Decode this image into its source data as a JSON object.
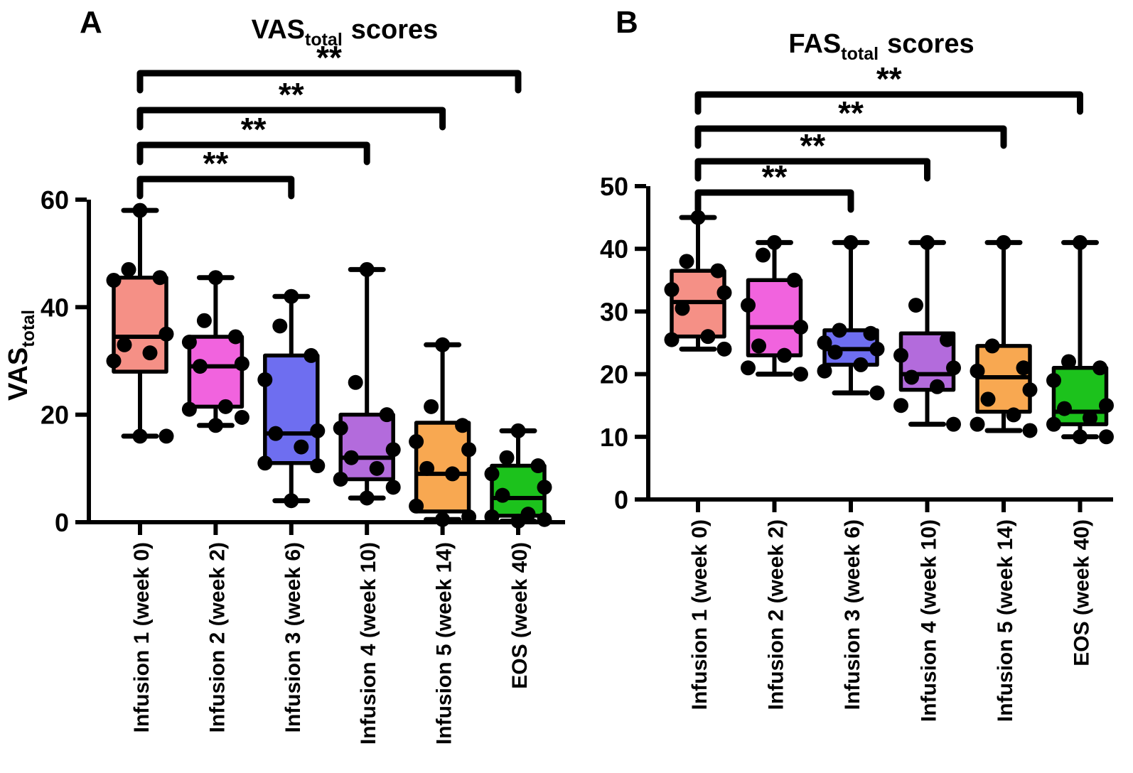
{
  "chart_data": [
    {
      "type": "boxplot",
      "panel_letter": "A",
      "title_main": "VAS",
      "title_sub": "total",
      "title_rest": "scores",
      "ylabel_main": "VAS",
      "ylabel_sub": "total",
      "ylim": [
        0,
        60
      ],
      "yticks": [
        0,
        20,
        40,
        60
      ],
      "categories": [
        "Infusion 1 (week 0)",
        "Infusion 2 (week 2)",
        "Infusion 3 (week 6)",
        "Infusion 4 (week 10)",
        "Infusion 5 (week 14)",
        "EOS (week 40)"
      ],
      "boxes": [
        {
          "category": "Infusion 1 (week 0)",
          "color": "#F59086",
          "whisker_low": 16,
          "q1": 28,
          "median": 34.5,
          "q3": 45.5,
          "whisker_high": 58,
          "points": [
            58,
            47,
            45.5,
            45,
            35,
            33,
            31.5,
            30,
            16,
            16
          ]
        },
        {
          "category": "Infusion 2 (week 2)",
          "color": "#F163DE",
          "whisker_low": 18,
          "q1": 21.5,
          "median": 29,
          "q3": 34.5,
          "whisker_high": 45.5,
          "points": [
            45.5,
            37.5,
            34.5,
            33.5,
            29.5,
            29,
            21.5,
            21,
            19.5,
            18
          ]
        },
        {
          "category": "Infusion 3 (week 6)",
          "color": "#6E6EF0",
          "whisker_low": 4,
          "q1": 11,
          "median": 16.5,
          "q3": 31,
          "whisker_high": 42,
          "points": [
            42,
            36.5,
            31,
            26.5,
            17,
            16.5,
            14,
            11,
            10.5,
            4
          ]
        },
        {
          "category": "Infusion 4 (week 10)",
          "color": "#B36BDC",
          "whisker_low": 4.5,
          "q1": 8,
          "median": 12,
          "q3": 20,
          "whisker_high": 47,
          "points": [
            47,
            26,
            20,
            17.5,
            13.5,
            12,
            10,
            8,
            6.5,
            4.5
          ]
        },
        {
          "category": "Infusion 5 (week 14)",
          "color": "#F8A851",
          "whisker_low": 0.5,
          "q1": 2,
          "median": 9,
          "q3": 18.5,
          "whisker_high": 33,
          "points": [
            33,
            21.5,
            18,
            15,
            13.5,
            10,
            9,
            3,
            1,
            0.5
          ]
        },
        {
          "category": "EOS (week 40)",
          "color": "#1CC21C",
          "whisker_low": 0.2,
          "q1": 1.2,
          "median": 4.5,
          "q3": 10.5,
          "whisker_high": 17,
          "points": [
            17,
            12,
            10.5,
            9,
            6.5,
            5,
            1.5,
            1,
            0.5,
            0.2
          ]
        }
      ],
      "significance": [
        {
          "from": 0,
          "to": 5,
          "label": "**"
        },
        {
          "from": 0,
          "to": 4,
          "label": "**"
        },
        {
          "from": 0,
          "to": 3,
          "label": "**"
        },
        {
          "from": 0,
          "to": 2,
          "label": "**"
        }
      ]
    },
    {
      "type": "boxplot",
      "panel_letter": "B",
      "title_main": "FAS",
      "title_sub": "total",
      "title_rest": "scores",
      "ylim": [
        0,
        50
      ],
      "yticks": [
        0,
        10,
        20,
        30,
        40,
        50
      ],
      "categories": [
        "Infusion 1 (week 0)",
        "Infusion 2 (week 2)",
        "Infusion 3 (week 6)",
        "Infusion 4 (week 10)",
        "Infusion 5 (week 14)",
        "EOS (week 40)"
      ],
      "boxes": [
        {
          "category": "Infusion 1 (week 0)",
          "color": "#F59086",
          "whisker_low": 24,
          "q1": 26,
          "median": 31.5,
          "q3": 36.5,
          "whisker_high": 45,
          "points": [
            45,
            38,
            36.5,
            33.5,
            33,
            30.5,
            26,
            25.5,
            24
          ]
        },
        {
          "category": "Infusion 2 (week 2)",
          "color": "#F163DE",
          "whisker_low": 20,
          "q1": 23,
          "median": 27.5,
          "q3": 35,
          "whisker_high": 41,
          "points": [
            41,
            39,
            35,
            31,
            27.5,
            24.5,
            23,
            21,
            20
          ]
        },
        {
          "category": "Infusion 3 (week 6)",
          "color": "#6E6EF0",
          "whisker_low": 17,
          "q1": 21.5,
          "median": 24,
          "q3": 27,
          "whisker_high": 41,
          "points": [
            41,
            27,
            26.5,
            25,
            24,
            23.5,
            21.5,
            20.5,
            17
          ]
        },
        {
          "category": "Infusion 4 (week 10)",
          "color": "#B36BDC",
          "whisker_low": 12,
          "q1": 17.5,
          "median": 20,
          "q3": 26.5,
          "whisker_high": 41,
          "points": [
            41,
            31,
            25.5,
            23,
            21,
            19.5,
            18,
            15,
            12
          ]
        },
        {
          "category": "Infusion 5 (week 14)",
          "color": "#F8A851",
          "whisker_low": 11,
          "q1": 14,
          "median": 19.5,
          "q3": 24.5,
          "whisker_high": 41,
          "points": [
            41,
            24.5,
            21,
            20.5,
            17.5,
            16,
            13.5,
            12,
            11
          ]
        },
        {
          "category": "EOS (week 40)",
          "color": "#1CC21C",
          "whisker_low": 10,
          "q1": 12,
          "median": 14,
          "q3": 21,
          "whisker_high": 41,
          "points": [
            41,
            22,
            21,
            19,
            15,
            14.5,
            13,
            12,
            10,
            10
          ]
        }
      ],
      "significance": [
        {
          "from": 0,
          "to": 5,
          "label": "**"
        },
        {
          "from": 0,
          "to": 4,
          "label": "**"
        },
        {
          "from": 0,
          "to": 3,
          "label": "**"
        },
        {
          "from": 0,
          "to": 2,
          "label": "**"
        }
      ]
    }
  ]
}
